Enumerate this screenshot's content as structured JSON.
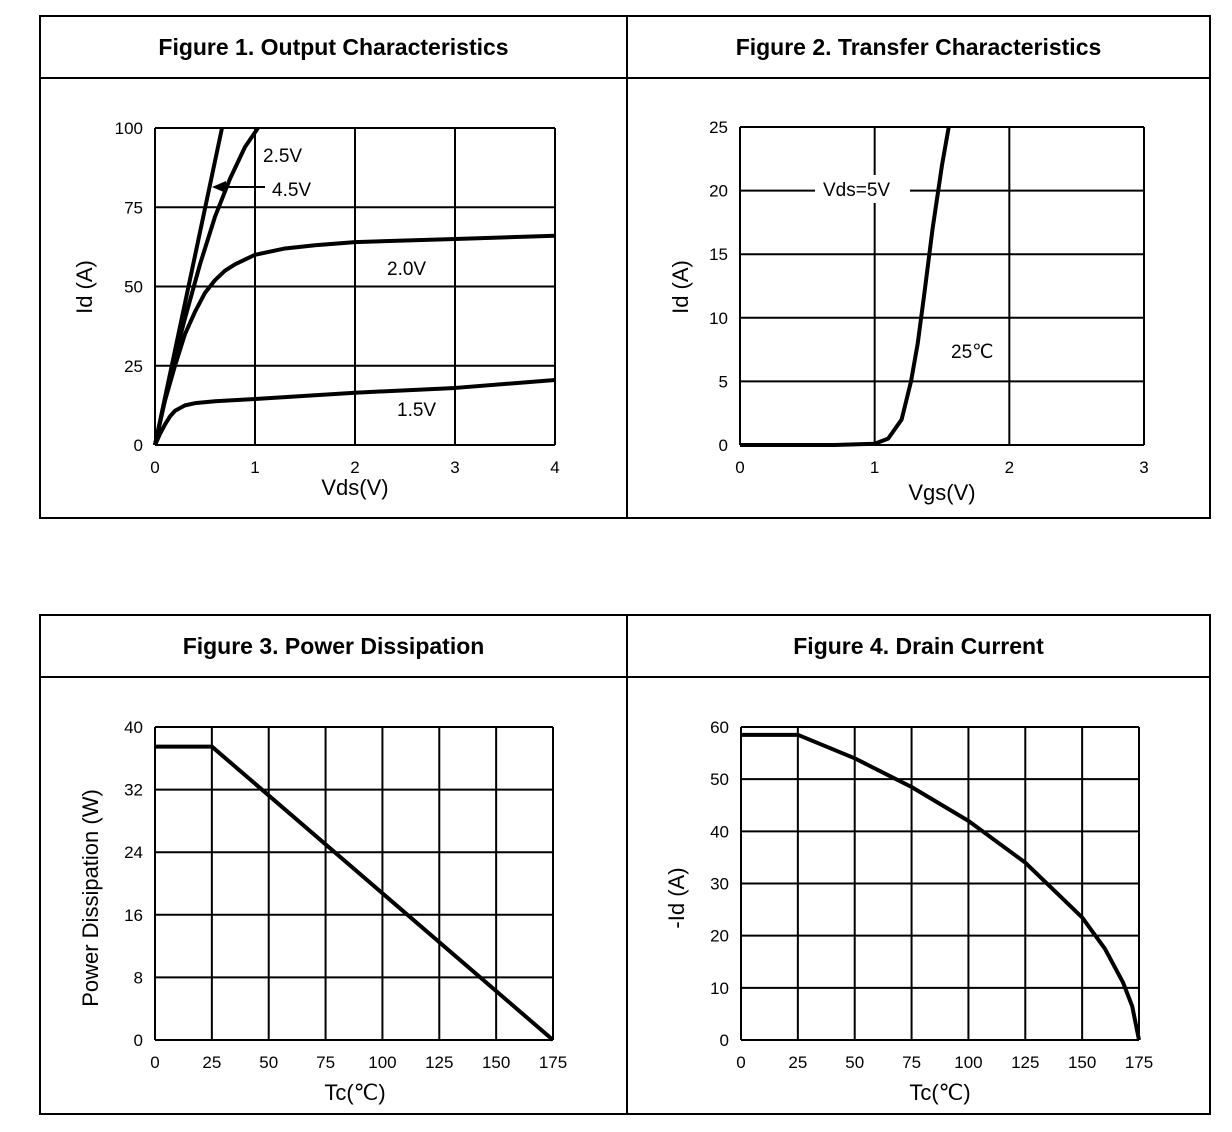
{
  "chart_data": [
    {
      "type": "line",
      "title": "Figure 1. Output Characteristics",
      "xlabel": "Vds(V)",
      "ylabel": "Id (A)",
      "xlim": [
        0,
        4
      ],
      "ylim": [
        0,
        100
      ],
      "xticks": [
        0,
        1,
        2,
        3,
        4
      ],
      "yticks": [
        0,
        25,
        50,
        75,
        100
      ],
      "grid": true,
      "series": [
        {
          "name": "4.5V",
          "x": [
            0,
            0.67
          ],
          "y": [
            0,
            100
          ]
        },
        {
          "name": "2.5V",
          "x": [
            0,
            0.15,
            0.3,
            0.45,
            0.6,
            0.75,
            0.9,
            1.03
          ],
          "y": [
            0,
            22,
            40,
            57,
            72,
            84,
            94,
            100
          ]
        },
        {
          "name": "2.0V",
          "x": [
            0,
            0.1,
            0.2,
            0.3,
            0.4,
            0.5,
            0.6,
            0.7,
            0.8,
            1,
            1.3,
            1.6,
            2,
            3,
            4
          ],
          "y": [
            0,
            14,
            25,
            35,
            42,
            48,
            52,
            55,
            57,
            60,
            62,
            63,
            64,
            65,
            66
          ]
        },
        {
          "name": "1.5V",
          "x": [
            0,
            0.05,
            0.1,
            0.15,
            0.2,
            0.3,
            0.4,
            0.6,
            1,
            2,
            3,
            4
          ],
          "y": [
            0,
            3.5,
            6.5,
            9,
            10.8,
            12.5,
            13.2,
            13.8,
            14.5,
            16.5,
            18,
            20.5
          ]
        }
      ]
    },
    {
      "type": "line",
      "title": "Figure 2. Transfer Characteristics",
      "xlabel": "Vgs(V)",
      "ylabel": "Id (A)",
      "xlim": [
        0,
        3
      ],
      "ylim": [
        0,
        25
      ],
      "xticks": [
        0,
        1,
        2,
        3
      ],
      "yticks": [
        0,
        5,
        10,
        15,
        20,
        25
      ],
      "grid": true,
      "annotations": [
        "Vds=5V",
        "25℃"
      ],
      "series": [
        {
          "x": [
            0,
            0.7,
            1,
            1.1,
            1.2,
            1.27,
            1.32,
            1.37,
            1.43,
            1.5,
            1.55
          ],
          "y": [
            0,
            0,
            0.1,
            0.5,
            2,
            5,
            8,
            12,
            17,
            22,
            25
          ]
        }
      ]
    },
    {
      "type": "line",
      "title": "Figure 3. Power Dissipation",
      "xlabel": "Tc(℃)",
      "ylabel": "Power Dissipation (W)",
      "xlim": [
        0,
        175
      ],
      "ylim": [
        0,
        40
      ],
      "xticks": [
        0,
        25,
        50,
        75,
        100,
        125,
        150,
        175
      ],
      "yticks": [
        0,
        8,
        16,
        24,
        32,
        40
      ],
      "grid": true,
      "series": [
        {
          "x": [
            0,
            25,
            175
          ],
          "y": [
            37.5,
            37.5,
            0
          ]
        }
      ]
    },
    {
      "type": "line",
      "title": "Figure 4. Drain Current",
      "xlabel": "Tc(℃)",
      "ylabel": "-Id (A)",
      "xlim": [
        0,
        175
      ],
      "ylim": [
        0,
        60
      ],
      "xticks": [
        0,
        25,
        50,
        75,
        100,
        125,
        150,
        175
      ],
      "yticks": [
        0,
        10,
        20,
        30,
        40,
        50,
        60
      ],
      "grid": true,
      "series": [
        {
          "x": [
            0,
            25,
            50,
            75,
            100,
            125,
            150,
            160,
            168,
            172,
            175
          ],
          "y": [
            58.5,
            58.5,
            54,
            48.5,
            42,
            34,
            23.5,
            17.5,
            11,
            6.5,
            0
          ]
        }
      ]
    }
  ]
}
